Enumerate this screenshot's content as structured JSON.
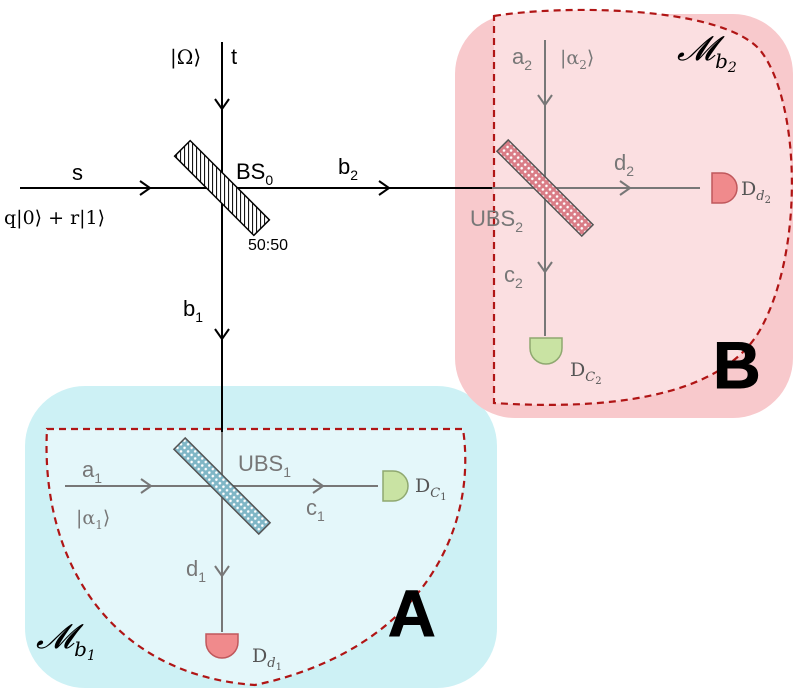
{
  "regions": {
    "A": {
      "label": "A",
      "measurement_label": "𝓜",
      "measurement_sub": "b",
      "measurement_sub2": "1",
      "fill": "#cdf1f5",
      "inner_fill": "#e4f7fa"
    },
    "B": {
      "label": "B",
      "measurement_label": "𝓜",
      "measurement_sub": "b",
      "measurement_sub2": "2",
      "fill": "#f8c9cc",
      "inner_fill": "#fbdfe1"
    }
  },
  "source": {
    "mode": "s",
    "state": "q|0⟩ + r|1⟩"
  },
  "input_t": {
    "mode": "t",
    "state": "|Ω⟩"
  },
  "beam_splitter_0": {
    "name": "BS",
    "sub": "0",
    "ratio": "50:50"
  },
  "outputs": {
    "b1": "b",
    "b1_sub": "1",
    "b2": "b",
    "b2_sub": "2"
  },
  "side_A": {
    "ubs": "UBS",
    "ubs_sub": "1",
    "a_mode": "a",
    "a_sub": "1",
    "a_state": "|α",
    "a_state_sub": "1",
    "a_state_close": "⟩",
    "c_mode": "c",
    "c_sub": "1",
    "d_mode": "d",
    "d_sub": "1",
    "det_c": "D",
    "det_c_sub": "C",
    "det_c_sub2": "1",
    "det_d": "D",
    "det_d_sub": "d",
    "det_d_sub2": "1"
  },
  "side_B": {
    "ubs": "UBS",
    "ubs_sub": "2",
    "a_mode": "a",
    "a_sub": "2",
    "a_state": "|α",
    "a_state_sub": "2",
    "a_state_close": "⟩",
    "c_mode": "c",
    "c_sub": "2",
    "d_mode": "d",
    "d_sub": "2",
    "det_c": "D",
    "det_c_sub": "C",
    "det_c_sub2": "2",
    "det_d": "D",
    "det_d_sub": "d",
    "det_d_sub2": "2"
  },
  "colors": {
    "detector_green": "#c9e3a3",
    "detector_red": "#f08a8c",
    "dashed": "#b01515"
  }
}
